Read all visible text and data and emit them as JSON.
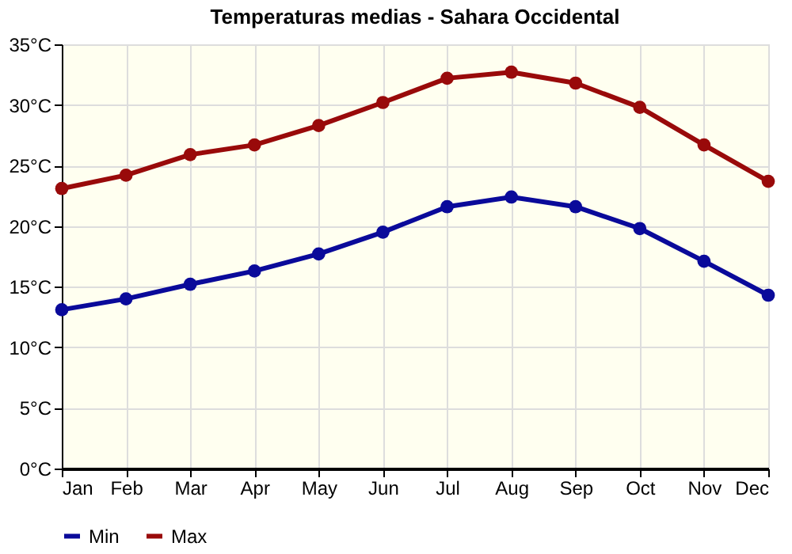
{
  "chart_data": {
    "type": "line",
    "title": "Temperaturas medias - Sahara Occidental",
    "categories": [
      "Jan",
      "Feb",
      "Mar",
      "Apr",
      "May",
      "Jun",
      "Jul",
      "Aug",
      "Sep",
      "Oct",
      "Nov",
      "Dec"
    ],
    "series": [
      {
        "name": "Min",
        "color": "#0a0a9a",
        "values": [
          13.1,
          14.0,
          15.2,
          16.3,
          17.7,
          19.5,
          21.6,
          22.4,
          21.6,
          19.8,
          17.1,
          14.3
        ]
      },
      {
        "name": "Max",
        "color": "#990a0a",
        "values": [
          23.1,
          24.2,
          25.9,
          26.7,
          28.3,
          30.2,
          32.2,
          32.7,
          31.8,
          29.8,
          26.7,
          23.7
        ]
      }
    ],
    "ylim": [
      0,
      35
    ],
    "yticks": [
      {
        "value": 0,
        "label": "0°C"
      },
      {
        "value": 5,
        "label": "5°C"
      },
      {
        "value": 10,
        "label": "10°C"
      },
      {
        "value": 15,
        "label": "15°C"
      },
      {
        "value": 20,
        "label": "20°C"
      },
      {
        "value": 25,
        "label": "25°C"
      },
      {
        "value": 30,
        "label": "30°C"
      },
      {
        "value": 35,
        "label": "35°C"
      }
    ],
    "grid": true,
    "legend": "bottom left",
    "marker": "circle",
    "line_style": "solid"
  }
}
